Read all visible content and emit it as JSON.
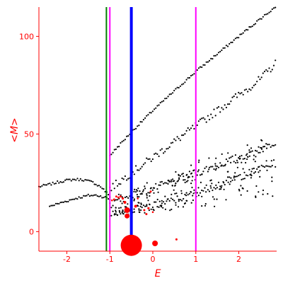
{
  "chart_data": {
    "type": "scatter",
    "xlabel": "E",
    "ylabel": "<M>",
    "xlim": [
      -2.65,
      2.88
    ],
    "ylim": [
      -10,
      115
    ],
    "x_ticks": [
      -2,
      -1,
      0,
      1,
      2
    ],
    "y_ticks": [
      0,
      50,
      100
    ],
    "grid": false,
    "colors": {
      "axis": "#ff0000",
      "points": "#000000",
      "highlight": "#ff0000",
      "v_green": "#008000",
      "v_blue": "#0000ff",
      "v_magenta": "#ff00ff"
    },
    "vertical_lines": [
      {
        "x": -1.08,
        "color": "#008000"
      },
      {
        "x": -1.0,
        "color": "#ff00ff"
      },
      {
        "x": -0.5,
        "color": "#0000ff"
      },
      {
        "x": 1.0,
        "color": "#ff00ff"
      }
    ],
    "black_curves": [
      {
        "x": [
          -2.65,
          -2.4,
          -2.2,
          -2.0,
          -1.8,
          -1.6,
          -1.4,
          -1.2,
          -1.1,
          -1.0
        ],
        "y": [
          23,
          24.2,
          25.4,
          26.3,
          26.8,
          26.5,
          25.3,
          22.8,
          20.5,
          18
        ]
      },
      {
        "x": [
          -2.4,
          -2.1,
          -1.8,
          -1.5,
          -1.3,
          -1.1,
          -1.0
        ],
        "y": [
          13,
          15,
          17,
          18.5,
          18.6,
          17.5,
          16.5
        ]
      },
      {
        "x": [
          -1.0,
          -0.5,
          0.0,
          0.5,
          1.0,
          1.5,
          2.0,
          2.5,
          2.85
        ],
        "y": [
          39,
          51,
          62,
          72,
          82,
          91,
          100,
          109,
          115
        ]
      },
      {
        "x": [
          -1.0,
          -0.5,
          0.0,
          0.5,
          1.0,
          1.5,
          2.0,
          2.5,
          2.85
        ],
        "y": [
          22,
          30,
          38,
          46,
          54,
          62,
          70,
          78,
          86
        ]
      },
      {
        "x": [
          -1.0,
          -0.5,
          0.0,
          0.5,
          1.0,
          1.5,
          2.0,
          2.5,
          2.85
        ],
        "y": [
          14,
          18,
          22,
          26,
          30,
          34,
          38,
          42,
          46
        ]
      },
      {
        "x": [
          -1.0,
          -0.5,
          0.0,
          0.5,
          1.0,
          1.5,
          2.0,
          2.5,
          2.85
        ],
        "y": [
          10,
          11,
          13,
          16,
          20,
          24,
          28,
          32,
          35
        ]
      }
    ],
    "red_points": [
      {
        "x": -0.5,
        "y": -7,
        "r": 15
      },
      {
        "x": 0.05,
        "y": -6,
        "r": 4
      },
      {
        "x": 0.55,
        "y": -4,
        "r": 1.5
      },
      {
        "x": -0.6,
        "y": 11,
        "r": 4
      },
      {
        "x": -0.6,
        "y": 8,
        "r": 3.5
      },
      {
        "x": -0.65,
        "y": 15,
        "r": 2
      },
      {
        "x": -0.7,
        "y": 17,
        "r": 1.6
      },
      {
        "x": -0.75,
        "y": 18,
        "r": 1.5
      },
      {
        "x": -0.8,
        "y": 17.5,
        "r": 1.5
      },
      {
        "x": -0.85,
        "y": 18,
        "r": 1.4
      },
      {
        "x": -0.9,
        "y": 16.5,
        "r": 1.4
      },
      {
        "x": -0.95,
        "y": 16,
        "r": 1.3
      },
      {
        "x": -0.4,
        "y": 13,
        "r": 2
      },
      {
        "x": -0.2,
        "y": 11,
        "r": 1.5
      },
      {
        "x": -0.1,
        "y": 12,
        "r": 1.6
      },
      {
        "x": -0.15,
        "y": 9,
        "r": 1.5
      },
      {
        "x": -0.05,
        "y": 20.5,
        "r": 1.5
      },
      {
        "x": 0.0,
        "y": 10,
        "r": 1.3
      },
      {
        "x": -0.35,
        "y": 17,
        "r": 1.3
      }
    ]
  }
}
